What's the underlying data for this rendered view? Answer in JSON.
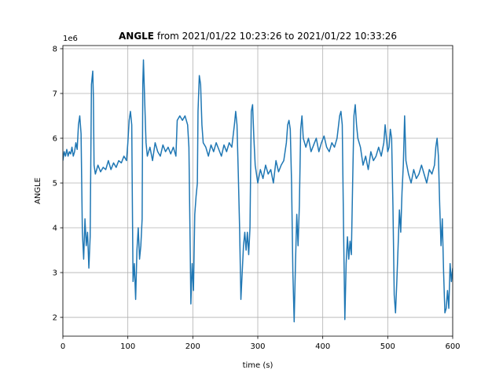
{
  "chart_data": {
    "type": "line",
    "title": {
      "bold": "ANGLE",
      "rest": "from 2021/01/22 10:23:26 to 2021/01/22 10:33:26"
    },
    "xlabel": "time (s)",
    "ylabel": "ANGLE",
    "y_offset_label": "1e6",
    "xlim": [
      0,
      600
    ],
    "xticks": [
      0,
      100,
      200,
      300,
      400,
      500,
      600
    ],
    "ylim": [
      1.58,
      8.07
    ],
    "yticks": [
      2,
      3,
      4,
      5,
      6,
      7,
      8
    ],
    "grid": true,
    "x": [
      0,
      2,
      4,
      6,
      8,
      10,
      12,
      14,
      16,
      18,
      20,
      22,
      24,
      26,
      28,
      29,
      30,
      32,
      34,
      36,
      38,
      40,
      42,
      44,
      46,
      47,
      48,
      50,
      54,
      58,
      62,
      66,
      70,
      74,
      78,
      82,
      86,
      90,
      94,
      98,
      100,
      102,
      104,
      106,
      107,
      108,
      110,
      112,
      114,
      116,
      118,
      120,
      122,
      123,
      124,
      126,
      128,
      130,
      134,
      138,
      142,
      146,
      150,
      154,
      158,
      162,
      166,
      170,
      174,
      176,
      180,
      184,
      188,
      192,
      194,
      196,
      197,
      199,
      201,
      203,
      205,
      207,
      208,
      210,
      212,
      214,
      216,
      220,
      224,
      228,
      232,
      236,
      240,
      244,
      248,
      252,
      256,
      260,
      264,
      266,
      268,
      270,
      272,
      274,
      276,
      278,
      280,
      282,
      284,
      286,
      288,
      290,
      292,
      294,
      296,
      300,
      304,
      308,
      312,
      316,
      320,
      324,
      328,
      332,
      336,
      340,
      344,
      346,
      348,
      350,
      352,
      354,
      356,
      358,
      360,
      362,
      364,
      366,
      368,
      370,
      374,
      378,
      382,
      386,
      390,
      394,
      398,
      402,
      406,
      410,
      414,
      418,
      422,
      426,
      428,
      430,
      432,
      434,
      436,
      438,
      440,
      442,
      444,
      446,
      448,
      450,
      452,
      454,
      458,
      462,
      466,
      470,
      474,
      478,
      482,
      486,
      490,
      494,
      496,
      498,
      500,
      502,
      504,
      506,
      508,
      510,
      512,
      514,
      516,
      518,
      520,
      522,
      524,
      526,
      528,
      532,
      536,
      540,
      544,
      548,
      552,
      556,
      560,
      564,
      568,
      572,
      574,
      576,
      578,
      580,
      582,
      584,
      586,
      588,
      590,
      592,
      594,
      596,
      598,
      600
    ],
    "series": [
      {
        "name": "ANGLE",
        "color": "#1f77b4",
        "values": [
          5.5,
          5.7,
          5.6,
          5.75,
          5.6,
          5.7,
          5.65,
          5.8,
          5.6,
          5.7,
          5.9,
          5.75,
          6.3,
          6.5,
          6.1,
          5.0,
          3.9,
          3.3,
          4.2,
          3.6,
          3.9,
          3.1,
          3.8,
          7.2,
          7.5,
          6.9,
          5.4,
          5.2,
          5.4,
          5.25,
          5.35,
          5.3,
          5.5,
          5.3,
          5.45,
          5.35,
          5.5,
          5.45,
          5.6,
          5.5,
          5.9,
          6.4,
          6.6,
          6.3,
          4.5,
          2.8,
          3.2,
          2.4,
          3.5,
          4.0,
          3.3,
          3.6,
          4.2,
          7.2,
          7.75,
          6.8,
          5.9,
          5.6,
          5.8,
          5.5,
          5.9,
          5.7,
          5.6,
          5.85,
          5.7,
          5.8,
          5.65,
          5.8,
          5.6,
          6.4,
          6.5,
          6.4,
          6.5,
          6.3,
          5.8,
          3.5,
          2.3,
          3.2,
          2.6,
          4.3,
          4.7,
          5.0,
          6.6,
          7.4,
          7.2,
          6.3,
          5.9,
          5.8,
          5.6,
          5.85,
          5.7,
          5.9,
          5.75,
          5.6,
          5.85,
          5.7,
          5.9,
          5.8,
          6.3,
          6.6,
          6.3,
          5.2,
          4.0,
          2.4,
          3.0,
          3.6,
          3.9,
          3.5,
          3.9,
          3.4,
          4.0,
          6.6,
          6.75,
          6.0,
          5.4,
          5.0,
          5.3,
          5.1,
          5.4,
          5.2,
          5.3,
          5.0,
          5.5,
          5.25,
          5.4,
          5.5,
          5.9,
          6.3,
          6.4,
          6.2,
          5.0,
          3.0,
          1.9,
          3.2,
          4.3,
          3.6,
          4.5,
          6.2,
          6.5,
          6.0,
          5.8,
          6.0,
          5.7,
          5.85,
          6.0,
          5.7,
          5.9,
          6.05,
          5.8,
          5.7,
          5.9,
          5.8,
          6.0,
          6.5,
          6.6,
          6.3,
          4.0,
          1.95,
          3.2,
          3.8,
          3.3,
          3.7,
          3.4,
          5.0,
          6.5,
          6.75,
          6.3,
          6.0,
          5.8,
          5.4,
          5.6,
          5.3,
          5.7,
          5.5,
          5.6,
          5.8,
          5.6,
          5.9,
          6.3,
          6.0,
          5.7,
          5.8,
          6.2,
          6.0,
          4.5,
          2.5,
          2.1,
          2.8,
          3.6,
          4.4,
          3.9,
          4.8,
          5.4,
          6.5,
          5.5,
          5.2,
          5.0,
          5.3,
          5.1,
          5.2,
          5.4,
          5.2,
          5.0,
          5.3,
          5.2,
          5.4,
          5.8,
          6.0,
          5.6,
          4.5,
          3.6,
          4.2,
          3.0,
          2.1,
          2.2,
          2.6,
          2.2,
          3.2,
          2.8,
          3.1
        ]
      }
    ]
  }
}
